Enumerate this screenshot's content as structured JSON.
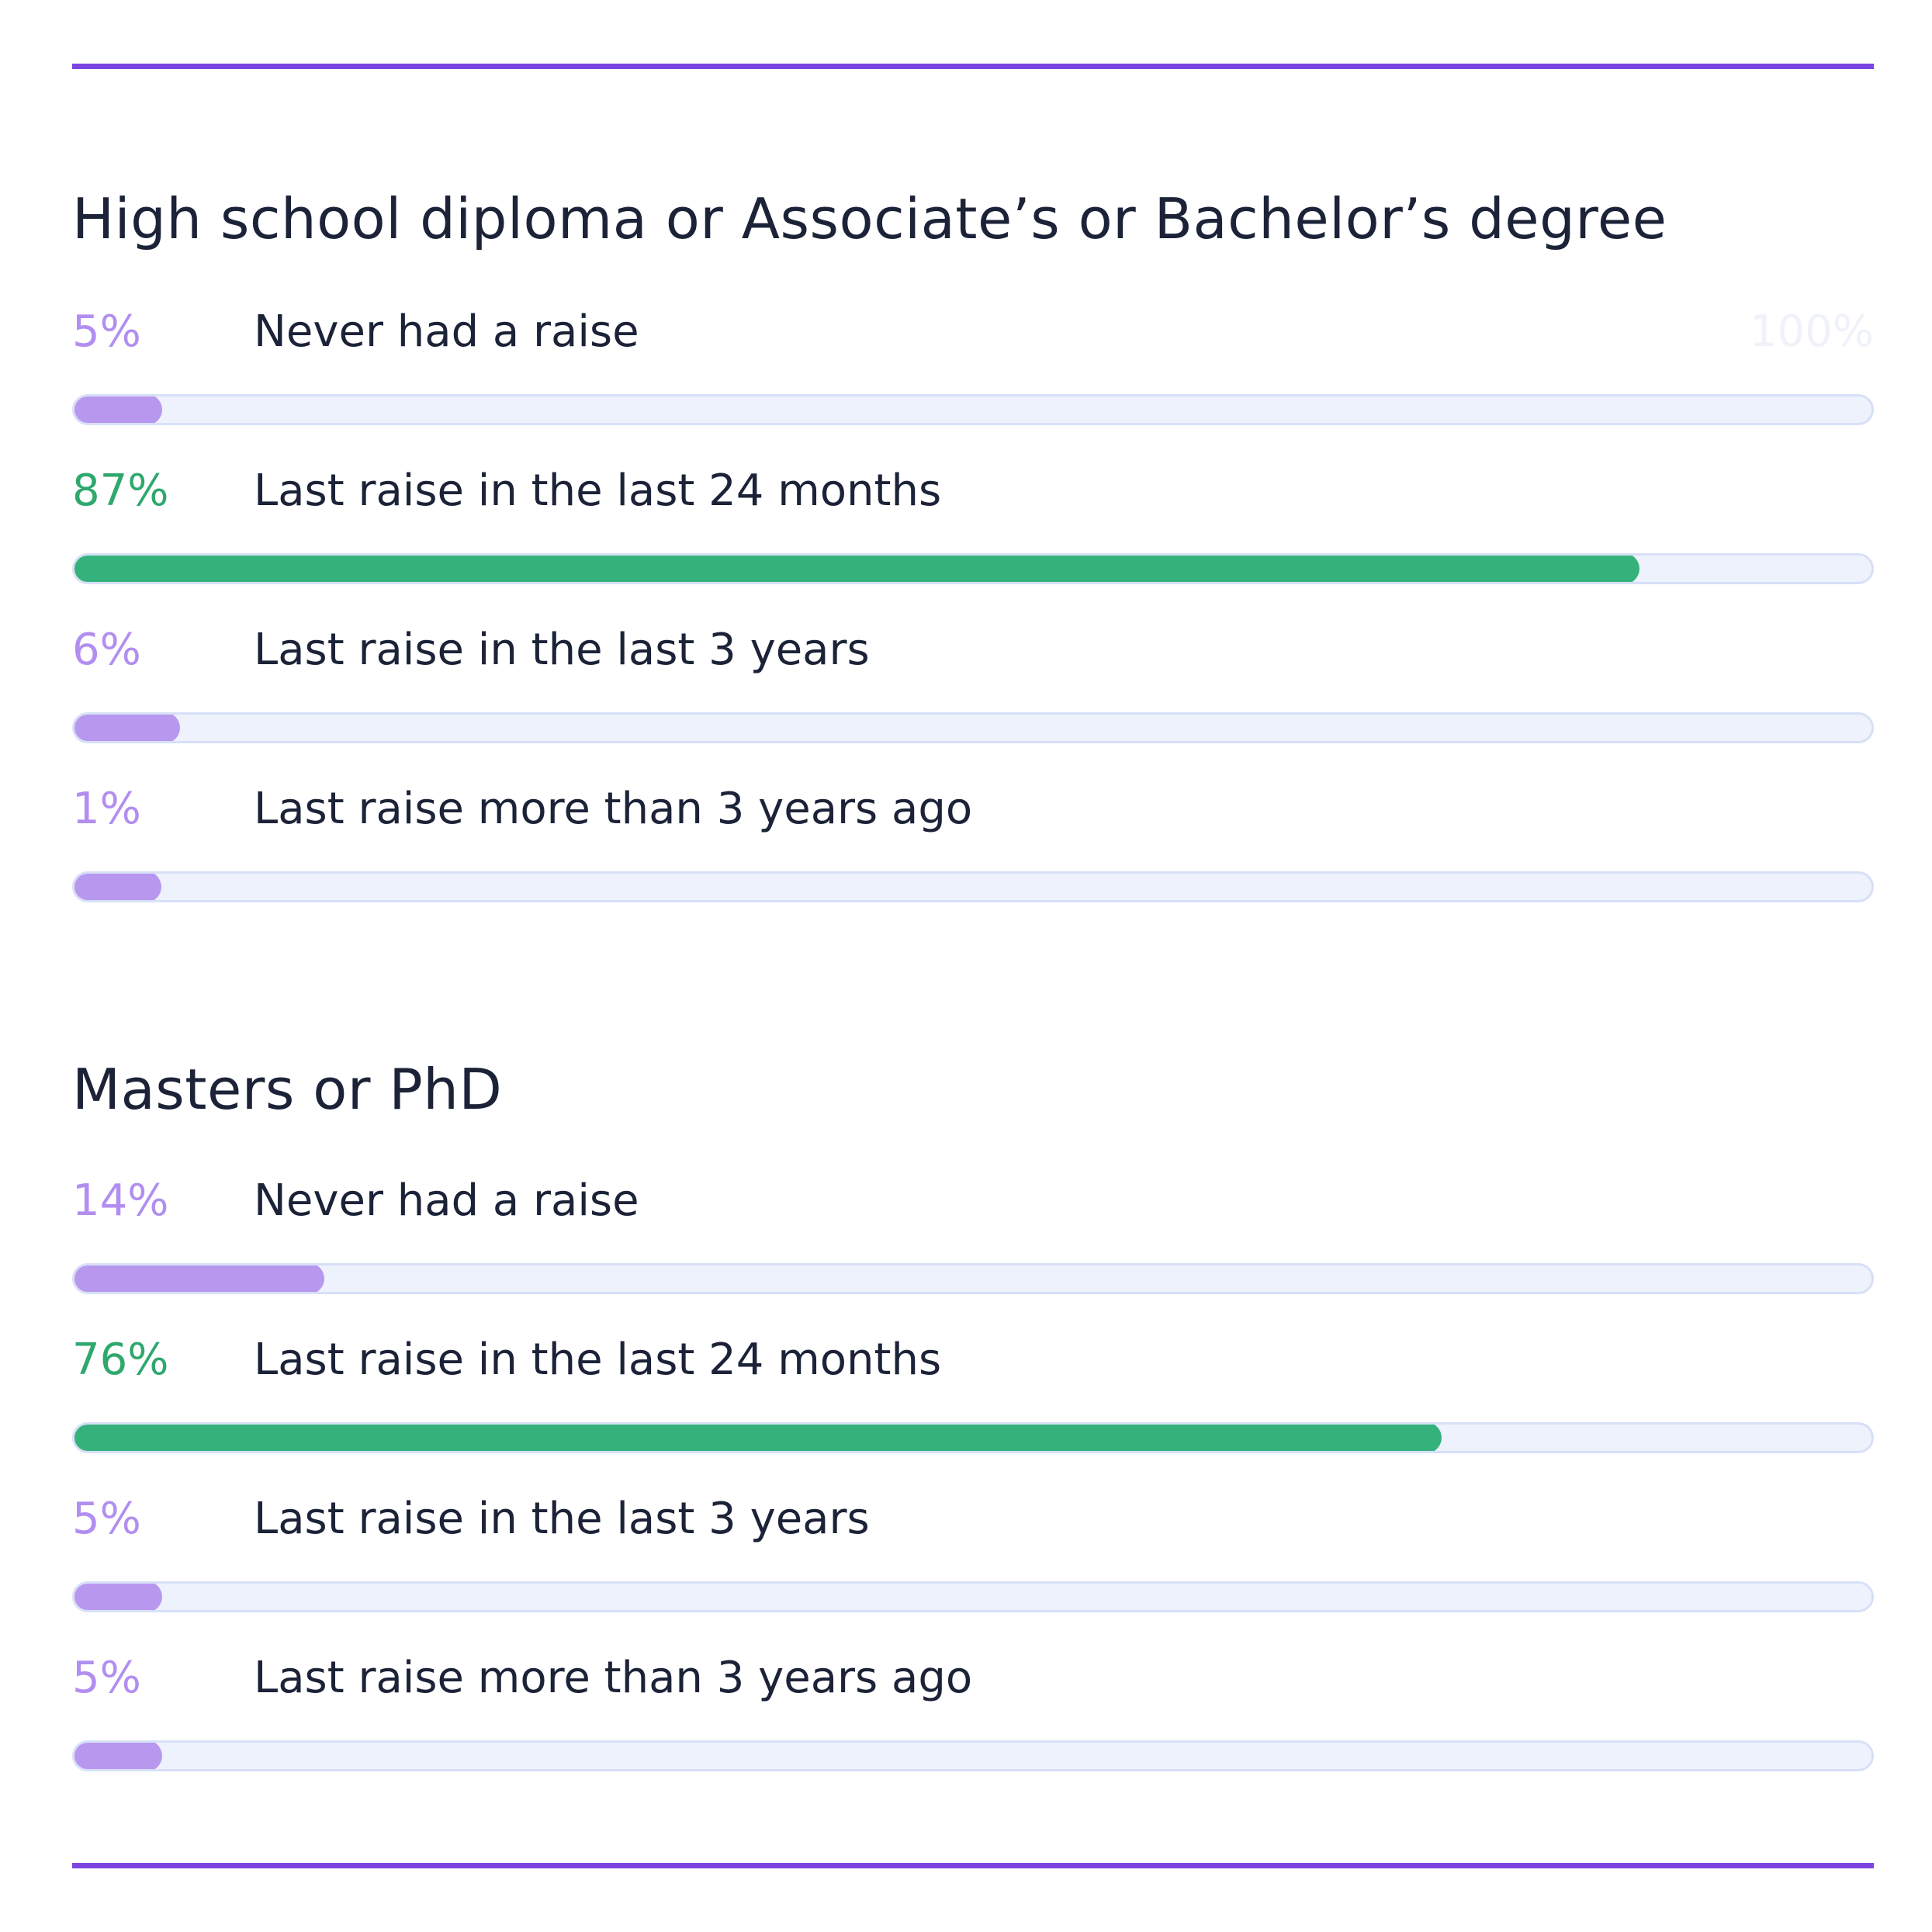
{
  "colors": {
    "rule": "#7c44e0",
    "accent": "#35b27b",
    "muted": "#b897ef",
    "track": "#eef2fc"
  },
  "max_label": "100%",
  "chart_data": {
    "type": "bar",
    "orientation": "horizontal",
    "xlim": [
      0,
      100
    ],
    "groups": [
      {
        "title": "High school diploma or Associate’s or Bachelor’s degree",
        "rows": [
          {
            "pct_text": "5%",
            "value": 5,
            "label": "Never had a raise",
            "highlight": false
          },
          {
            "pct_text": "87%",
            "value": 87,
            "label": "Last raise in the last 24 months",
            "highlight": true
          },
          {
            "pct_text": "6%",
            "value": 6,
            "label": "Last raise in the last 3 years",
            "highlight": false
          },
          {
            "pct_text": "1%",
            "value": 1,
            "label": "Last raise more than 3 years ago",
            "highlight": false
          }
        ]
      },
      {
        "title": "Masters or PhD",
        "rows": [
          {
            "pct_text": "14%",
            "value": 14,
            "label": "Never had a raise",
            "highlight": false
          },
          {
            "pct_text": "76%",
            "value": 76,
            "label": "Last raise in the last 24 months",
            "highlight": true
          },
          {
            "pct_text": "5%",
            "value": 5,
            "label": "Last raise in the last 3 years",
            "highlight": false
          },
          {
            "pct_text": "5%",
            "value": 5,
            "label": "Last raise more than 3 years ago",
            "highlight": false
          }
        ]
      }
    ]
  }
}
